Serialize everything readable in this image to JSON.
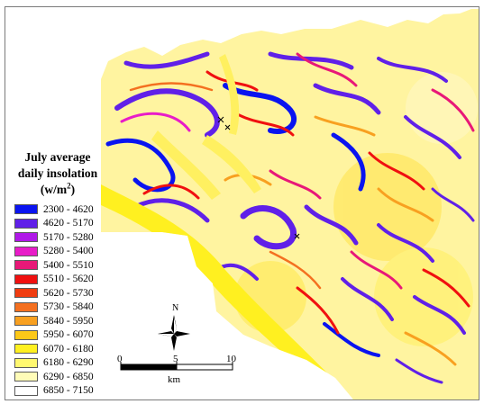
{
  "legend": {
    "title_line1": "July average",
    "title_line2": "daily insolation",
    "unit_base": "(w/m",
    "unit_sup": "2",
    "unit_end": ")",
    "classes": [
      {
        "range": "2300 - 4620",
        "color": "#0a14f0"
      },
      {
        "range": "4620 - 5170",
        "color": "#6020e8"
      },
      {
        "range": "5170 - 5280",
        "color": "#b018e8"
      },
      {
        "range": "5280 - 5400",
        "color": "#e81cc8"
      },
      {
        "range": "5400 - 5510",
        "color": "#e81878"
      },
      {
        "range": "5510 - 5620",
        "color": "#f01010"
      },
      {
        "range": "5620 - 5730",
        "color": "#f03c10"
      },
      {
        "range": "5730 - 5840",
        "color": "#f47020"
      },
      {
        "range": "5840 - 5950",
        "color": "#f8a020"
      },
      {
        "range": "5950 - 6070",
        "color": "#fcc818"
      },
      {
        "range": "6070 - 6180",
        "color": "#fff020"
      },
      {
        "range": "6180 - 6290",
        "color": "#fff870"
      },
      {
        "range": "6290 - 6850",
        "color": "#fffcb8"
      },
      {
        "range": "6850 - 7150",
        "color": "#ffffff"
      }
    ]
  },
  "north_arrow": {
    "label": "N"
  },
  "scale_bar": {
    "labels": [
      "0",
      "5",
      "10"
    ],
    "unit": "km"
  }
}
